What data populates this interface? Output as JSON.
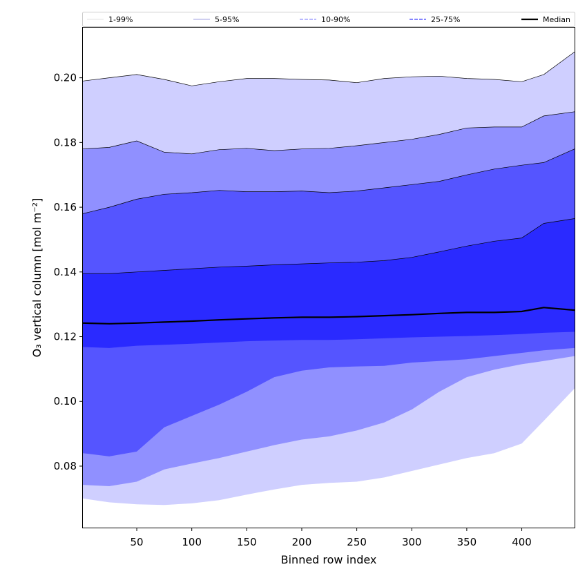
{
  "chart_data": {
    "type": "area",
    "title": "",
    "xlabel": "Binned row index",
    "ylabel": "O₃ vertical column [mol m⁻²]",
    "xlim": [
      1,
      448
    ],
    "ylim": [
      0.061,
      0.2155
    ],
    "x_ticks": [
      50,
      100,
      150,
      200,
      250,
      300,
      350,
      400
    ],
    "y_ticks": [
      0.08,
      0.1,
      0.12,
      0.14,
      0.16,
      0.18,
      0.2
    ],
    "y_tick_labels": [
      "0.08",
      "0.10",
      "0.12",
      "0.14",
      "0.16",
      "0.18",
      "0.20"
    ],
    "legend": {
      "placement": "top",
      "entries": [
        {
          "label": "1-99%",
          "color": "#d8d8d8",
          "style": "solid-thin"
        },
        {
          "label": "5-95%",
          "color": "#7f7fd8",
          "style": "solid-thin"
        },
        {
          "label": "10-90%",
          "color": "#8f8fff",
          "style": "dashed"
        },
        {
          "label": "25-75%",
          "color": "#3c3cff",
          "style": "dashed"
        },
        {
          "label": "Median",
          "color": "#000000",
          "style": "solid-thick"
        }
      ]
    },
    "x": [
      1,
      25,
      50,
      75,
      100,
      125,
      150,
      175,
      200,
      225,
      250,
      275,
      300,
      325,
      350,
      375,
      400,
      420,
      448
    ],
    "bands": [
      {
        "name": "1-99%",
        "color": "#cfcfff",
        "lower": [
          0.07,
          0.0688,
          0.0682,
          0.068,
          0.0685,
          0.0695,
          0.0712,
          0.0728,
          0.0742,
          0.0748,
          0.0752,
          0.0765,
          0.0785,
          0.0805,
          0.0825,
          0.084,
          0.087,
          0.094,
          0.104
        ],
        "upper": [
          0.199,
          0.2,
          0.201,
          0.1995,
          0.1975,
          0.1988,
          0.1998,
          0.1998,
          0.1995,
          0.1993,
          0.1985,
          0.1998,
          0.2003,
          0.2005,
          0.1998,
          0.1995,
          0.1988,
          0.201,
          0.208
        ]
      },
      {
        "name": "5-95%",
        "color": "#9090ff",
        "lower": [
          0.0742,
          0.0738,
          0.0752,
          0.079,
          0.0808,
          0.0825,
          0.0845,
          0.0865,
          0.0882,
          0.0892,
          0.091,
          0.0935,
          0.0975,
          0.103,
          0.1075,
          0.1098,
          0.1115,
          0.1125,
          0.114
        ],
        "upper": [
          0.178,
          0.1785,
          0.1805,
          0.177,
          0.1765,
          0.1778,
          0.1782,
          0.1775,
          0.178,
          0.1782,
          0.179,
          0.18,
          0.181,
          0.1825,
          0.1845,
          0.1848,
          0.1848,
          0.1882,
          0.1895
        ]
      },
      {
        "name": "10-90%",
        "color": "#5555ff",
        "lower": [
          0.084,
          0.083,
          0.0845,
          0.092,
          0.0955,
          0.099,
          0.103,
          0.1075,
          0.1095,
          0.1105,
          0.1108,
          0.111,
          0.112,
          0.1125,
          0.113,
          0.114,
          0.115,
          0.1158,
          0.1165
        ],
        "upper": [
          0.158,
          0.16,
          0.1625,
          0.164,
          0.1645,
          0.1652,
          0.1648,
          0.1648,
          0.165,
          0.1645,
          0.165,
          0.166,
          0.167,
          0.168,
          0.17,
          0.1718,
          0.173,
          0.1738,
          0.178
        ]
      },
      {
        "name": "25-75%",
        "color": "#2a2aff",
        "lower": [
          0.1168,
          0.1165,
          0.1172,
          0.1175,
          0.1178,
          0.1182,
          0.1186,
          0.1188,
          0.119,
          0.119,
          0.1192,
          0.1195,
          0.1198,
          0.12,
          0.1202,
          0.1205,
          0.1208,
          0.1212,
          0.1215
        ],
        "upper": [
          0.1395,
          0.1395,
          0.14,
          0.1405,
          0.141,
          0.1415,
          0.1418,
          0.1422,
          0.1425,
          0.1428,
          0.143,
          0.1435,
          0.1445,
          0.1462,
          0.148,
          0.1495,
          0.1505,
          0.155,
          0.1565
        ]
      }
    ],
    "median": {
      "name": "Median",
      "color": "#000000",
      "values": [
        0.1242,
        0.124,
        0.1242,
        0.1245,
        0.1248,
        0.1252,
        0.1255,
        0.1258,
        0.126,
        0.126,
        0.1262,
        0.1265,
        0.1268,
        0.1272,
        0.1275,
        0.1275,
        0.1278,
        0.129,
        0.1282
      ]
    }
  }
}
